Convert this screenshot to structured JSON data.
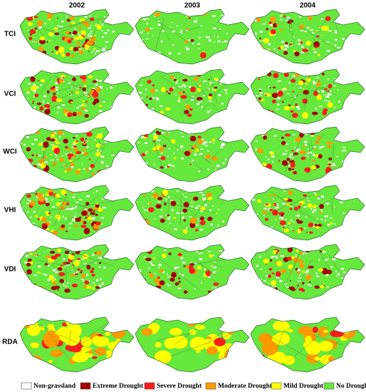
{
  "columns": [
    "2002",
    "2003",
    "2004"
  ],
  "rows": [
    "TCI",
    "VCI",
    "WCI",
    "VHI",
    "VDI",
    "RDA"
  ],
  "legend": [
    {
      "label": "Non-grassland",
      "color": "#ffffff"
    },
    {
      "label": "Extreme Drought",
      "color": "#a50000"
    },
    {
      "label": "Severe Drought",
      "color": "#ff1a1a"
    },
    {
      "label": "Moderate Drought",
      "color": "#ff9900"
    },
    {
      "label": "Mild Drought",
      "color": "#ffff00"
    },
    {
      "label": "No Drought",
      "color": "#66e83c"
    }
  ]
}
